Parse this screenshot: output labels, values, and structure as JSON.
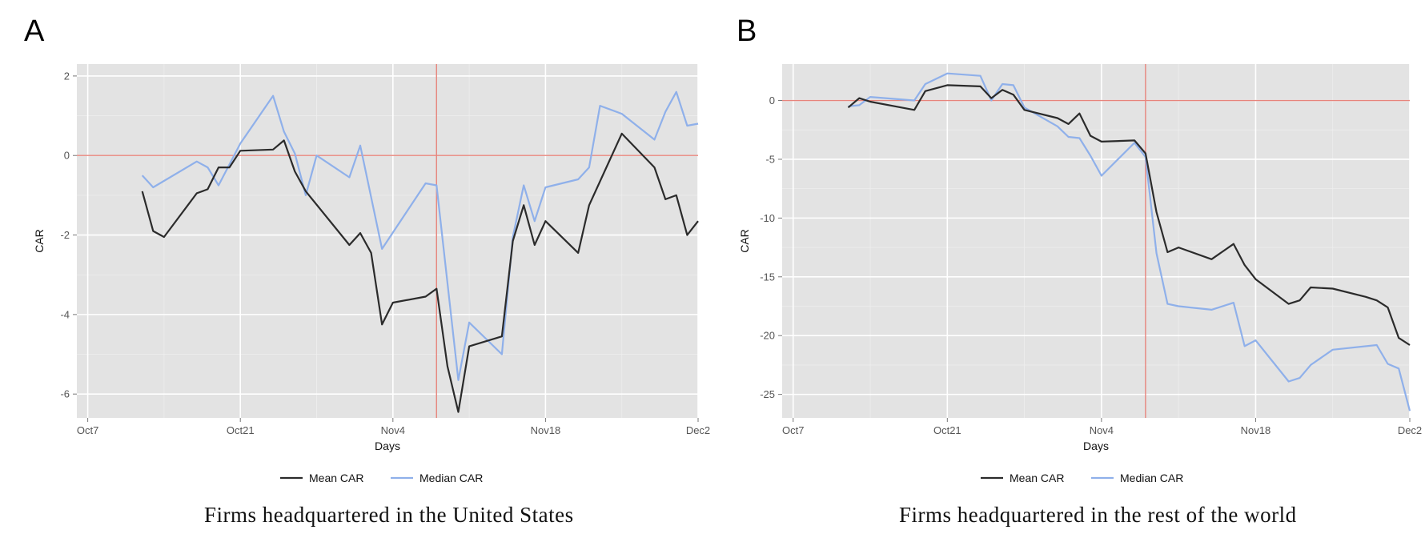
{
  "panels": [
    {
      "letter": "A",
      "caption": "Firms headquartered in the United States"
    },
    {
      "letter": "B",
      "caption": "Firms headquartered in the rest of the world"
    }
  ],
  "colors": {
    "mean": "#2b2b2b",
    "median": "#8fb0ea",
    "reference": "#e7847c",
    "panel_bg": "#e3e3e3",
    "grid": "#ffffff"
  },
  "chart_data": [
    {
      "type": "line",
      "title": "",
      "xlabel": "Days",
      "ylabel": "CAR",
      "x_axis": {
        "type": "date",
        "min": "2016-10-06",
        "max": "2016-12-02",
        "ticks": [
          "2016-10-07",
          "2016-10-21",
          "2016-11-04",
          "2016-11-18",
          "2016-12-02"
        ],
        "tick_labels": [
          "Oct7",
          "Oct21",
          "Nov4",
          "Nov18",
          "Dec2"
        ]
      },
      "ylim": [
        -6.6,
        2.3
      ],
      "yticks": [
        2,
        0,
        -2,
        -4,
        -6
      ],
      "ytick_labels": [
        "2",
        "0",
        "-2",
        "-4",
        "-6"
      ],
      "reference_lines": {
        "hline": 0,
        "vline": "2016-11-08"
      },
      "grid": true,
      "legend": {
        "position": "bottom",
        "entries": [
          "Mean CAR",
          "Median CAR"
        ]
      },
      "series": [
        {
          "name": "Mean CAR",
          "points": [
            [
              "2016-10-12",
              -0.9
            ],
            [
              "2016-10-13",
              -1.9
            ],
            [
              "2016-10-14",
              -2.05
            ],
            [
              "2016-10-17",
              -0.95
            ],
            [
              "2016-10-18",
              -0.85
            ],
            [
              "2016-10-19",
              -0.3
            ],
            [
              "2016-10-20",
              -0.3
            ],
            [
              "2016-10-21",
              0.12
            ],
            [
              "2016-10-24",
              0.15
            ],
            [
              "2016-10-25",
              0.38
            ],
            [
              "2016-10-26",
              -0.4
            ],
            [
              "2016-10-27",
              -0.9
            ],
            [
              "2016-10-31",
              -2.25
            ],
            [
              "2016-11-01",
              -1.95
            ],
            [
              "2016-11-02",
              -2.45
            ],
            [
              "2016-11-03",
              -4.25
            ],
            [
              "2016-11-04",
              -3.7
            ],
            [
              "2016-11-07",
              -3.55
            ],
            [
              "2016-11-08",
              -3.35
            ],
            [
              "2016-11-09",
              -5.3
            ],
            [
              "2016-11-10",
              -6.45
            ],
            [
              "2016-11-11",
              -4.8
            ],
            [
              "2016-11-14",
              -4.55
            ],
            [
              "2016-11-15",
              -2.15
            ],
            [
              "2016-11-16",
              -1.25
            ],
            [
              "2016-11-17",
              -2.25
            ],
            [
              "2016-11-18",
              -1.65
            ],
            [
              "2016-11-21",
              -2.45
            ],
            [
              "2016-11-22",
              -1.25
            ],
            [
              "2016-11-25",
              0.55
            ],
            [
              "2016-11-28",
              -0.3
            ],
            [
              "2016-11-29",
              -1.1
            ],
            [
              "2016-11-30",
              -1.0
            ],
            [
              "2016-12-01",
              -2.0
            ],
            [
              "2016-12-02",
              -1.65
            ]
          ]
        },
        {
          "name": "Median CAR",
          "points": [
            [
              "2016-10-12",
              -0.5
            ],
            [
              "2016-10-13",
              -0.8
            ],
            [
              "2016-10-17",
              -0.15
            ],
            [
              "2016-10-18",
              -0.3
            ],
            [
              "2016-10-19",
              -0.75
            ],
            [
              "2016-10-21",
              0.3
            ],
            [
              "2016-10-24",
              1.5
            ],
            [
              "2016-10-25",
              0.6
            ],
            [
              "2016-10-26",
              0.05
            ],
            [
              "2016-10-27",
              -1.0
            ],
            [
              "2016-10-28",
              0.0
            ],
            [
              "2016-10-31",
              -0.55
            ],
            [
              "2016-11-01",
              0.25
            ],
            [
              "2016-11-03",
              -2.35
            ],
            [
              "2016-11-07",
              -0.7
            ],
            [
              "2016-11-08",
              -0.75
            ],
            [
              "2016-11-10",
              -5.65
            ],
            [
              "2016-11-11",
              -4.2
            ],
            [
              "2016-11-14",
              -5.0
            ],
            [
              "2016-11-15",
              -2.05
            ],
            [
              "2016-11-16",
              -0.75
            ],
            [
              "2016-11-17",
              -1.65
            ],
            [
              "2016-11-18",
              -0.8
            ],
            [
              "2016-11-21",
              -0.6
            ],
            [
              "2016-11-22",
              -0.3
            ],
            [
              "2016-11-23",
              1.25
            ],
            [
              "2016-11-25",
              1.05
            ],
            [
              "2016-11-28",
              0.4
            ],
            [
              "2016-11-29",
              1.1
            ],
            [
              "2016-11-30",
              1.6
            ],
            [
              "2016-12-01",
              0.75
            ],
            [
              "2016-12-02",
              0.8
            ]
          ]
        }
      ]
    },
    {
      "type": "line",
      "title": "",
      "xlabel": "Days",
      "ylabel": "CAR",
      "x_axis": {
        "type": "date",
        "min": "2016-10-06",
        "max": "2016-12-02",
        "ticks": [
          "2016-10-07",
          "2016-10-21",
          "2016-11-04",
          "2016-11-18",
          "2016-12-02"
        ],
        "tick_labels": [
          "Oct7",
          "Oct21",
          "Nov4",
          "Nov18",
          "Dec2"
        ]
      },
      "ylim": [
        -27,
        3.1
      ],
      "yticks": [
        0,
        -5,
        -10,
        -15,
        -20,
        -25
      ],
      "ytick_labels": [
        "0",
        "-5",
        "-10",
        "-15",
        "-20",
        "-25"
      ],
      "reference_lines": {
        "hline": 0,
        "vline": "2016-11-08"
      },
      "grid": true,
      "legend": {
        "position": "bottom",
        "entries": [
          "Mean CAR",
          "Median CAR"
        ]
      },
      "series": [
        {
          "name": "Mean CAR",
          "points": [
            [
              "2016-10-12",
              -0.6
            ],
            [
              "2016-10-13",
              0.2
            ],
            [
              "2016-10-14",
              -0.1
            ],
            [
              "2016-10-18",
              -0.8
            ],
            [
              "2016-10-19",
              0.8
            ],
            [
              "2016-10-21",
              1.3
            ],
            [
              "2016-10-24",
              1.2
            ],
            [
              "2016-10-25",
              0.2
            ],
            [
              "2016-10-26",
              0.9
            ],
            [
              "2016-10-27",
              0.5
            ],
            [
              "2016-10-28",
              -0.8
            ],
            [
              "2016-10-31",
              -1.5
            ],
            [
              "2016-11-01",
              -2.0
            ],
            [
              "2016-11-02",
              -1.1
            ],
            [
              "2016-11-03",
              -3.0
            ],
            [
              "2016-11-04",
              -3.5
            ],
            [
              "2016-11-07",
              -3.4
            ],
            [
              "2016-11-08",
              -4.5
            ],
            [
              "2016-11-09",
              -9.5
            ],
            [
              "2016-11-10",
              -12.9
            ],
            [
              "2016-11-11",
              -12.5
            ],
            [
              "2016-11-14",
              -13.5
            ],
            [
              "2016-11-16",
              -12.2
            ],
            [
              "2016-11-17",
              -14.0
            ],
            [
              "2016-11-18",
              -15.2
            ],
            [
              "2016-11-21",
              -17.3
            ],
            [
              "2016-11-22",
              -17.0
            ],
            [
              "2016-11-23",
              -15.9
            ],
            [
              "2016-11-25",
              -16.0
            ],
            [
              "2016-11-28",
              -16.7
            ],
            [
              "2016-11-29",
              -17.0
            ],
            [
              "2016-11-30",
              -17.6
            ],
            [
              "2016-12-01",
              -20.2
            ],
            [
              "2016-12-02",
              -20.8
            ]
          ]
        },
        {
          "name": "Median CAR",
          "points": [
            [
              "2016-10-12",
              -0.5
            ],
            [
              "2016-10-13",
              -0.4
            ],
            [
              "2016-10-14",
              0.3
            ],
            [
              "2016-10-18",
              0.0
            ],
            [
              "2016-10-19",
              1.4
            ],
            [
              "2016-10-21",
              2.3
            ],
            [
              "2016-10-24",
              2.1
            ],
            [
              "2016-10-25",
              0.0
            ],
            [
              "2016-10-26",
              1.4
            ],
            [
              "2016-10-27",
              1.3
            ],
            [
              "2016-10-28",
              -0.6
            ],
            [
              "2016-10-31",
              -2.2
            ],
            [
              "2016-11-01",
              -3.1
            ],
            [
              "2016-11-02",
              -3.2
            ],
            [
              "2016-11-03",
              -4.7
            ],
            [
              "2016-11-04",
              -6.4
            ],
            [
              "2016-11-07",
              -3.6
            ],
            [
              "2016-11-08",
              -4.8
            ],
            [
              "2016-11-09",
              -13.0
            ],
            [
              "2016-11-10",
              -17.3
            ],
            [
              "2016-11-11",
              -17.5
            ],
            [
              "2016-11-14",
              -17.8
            ],
            [
              "2016-11-16",
              -17.2
            ],
            [
              "2016-11-17",
              -20.9
            ],
            [
              "2016-11-18",
              -20.4
            ],
            [
              "2016-11-21",
              -23.9
            ],
            [
              "2016-11-22",
              -23.6
            ],
            [
              "2016-11-23",
              -22.5
            ],
            [
              "2016-11-25",
              -21.2
            ],
            [
              "2016-11-29",
              -20.8
            ],
            [
              "2016-11-30",
              -22.4
            ],
            [
              "2016-12-01",
              -22.8
            ],
            [
              "2016-12-02",
              -26.4
            ]
          ]
        }
      ]
    }
  ]
}
